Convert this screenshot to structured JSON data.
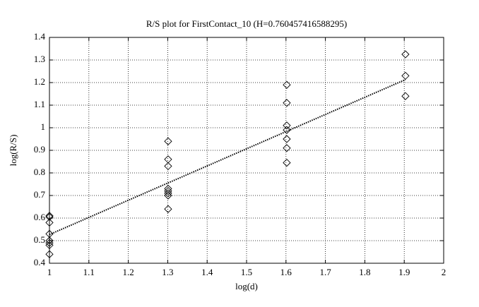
{
  "chart_data": {
    "type": "scatter",
    "title": "R/S plot for FirstContact_10 (H=0.760457416588295)",
    "x_label": "log(d)",
    "y_label": "log(R/S)",
    "xlim": [
      1,
      2
    ],
    "xticks": [
      1,
      1.1,
      1.2,
      1.3,
      1.4,
      1.5,
      1.6,
      1.7,
      1.8,
      1.9,
      2
    ],
    "ylim": [
      0.4,
      1.4
    ],
    "yticks": [
      0.4,
      0.5,
      0.6,
      0.7,
      0.8,
      0.9,
      1,
      1.1,
      1.2,
      1.3,
      1.4
    ],
    "grid": true,
    "series": [
      {
        "color": "#000000",
        "marker": "diamond",
        "x": [
          1,
          1,
          1,
          1,
          1,
          1,
          1,
          1,
          1.301,
          1.301,
          1.301,
          1.301,
          1.301,
          1.301,
          1.301,
          1.301,
          1.602,
          1.602,
          1.602,
          1.602,
          1.602,
          1.602,
          1.602,
          1.903,
          1.903,
          1.903
        ],
        "values": [
          0.61,
          0.605,
          0.58,
          0.53,
          0.5,
          0.49,
          0.48,
          0.44,
          0.94,
          0.86,
          0.83,
          0.73,
          0.72,
          0.71,
          0.7,
          0.64,
          1.19,
          1.11,
          1.01,
          0.99,
          0.95,
          0.91,
          0.845,
          1.325,
          1.23,
          1.14
        ]
      },
      {
        "color": "#000000",
        "style": "dotted",
        "x": [
          1,
          1.903
        ],
        "values": [
          0.527,
          1.213
        ]
      }
    ]
  }
}
